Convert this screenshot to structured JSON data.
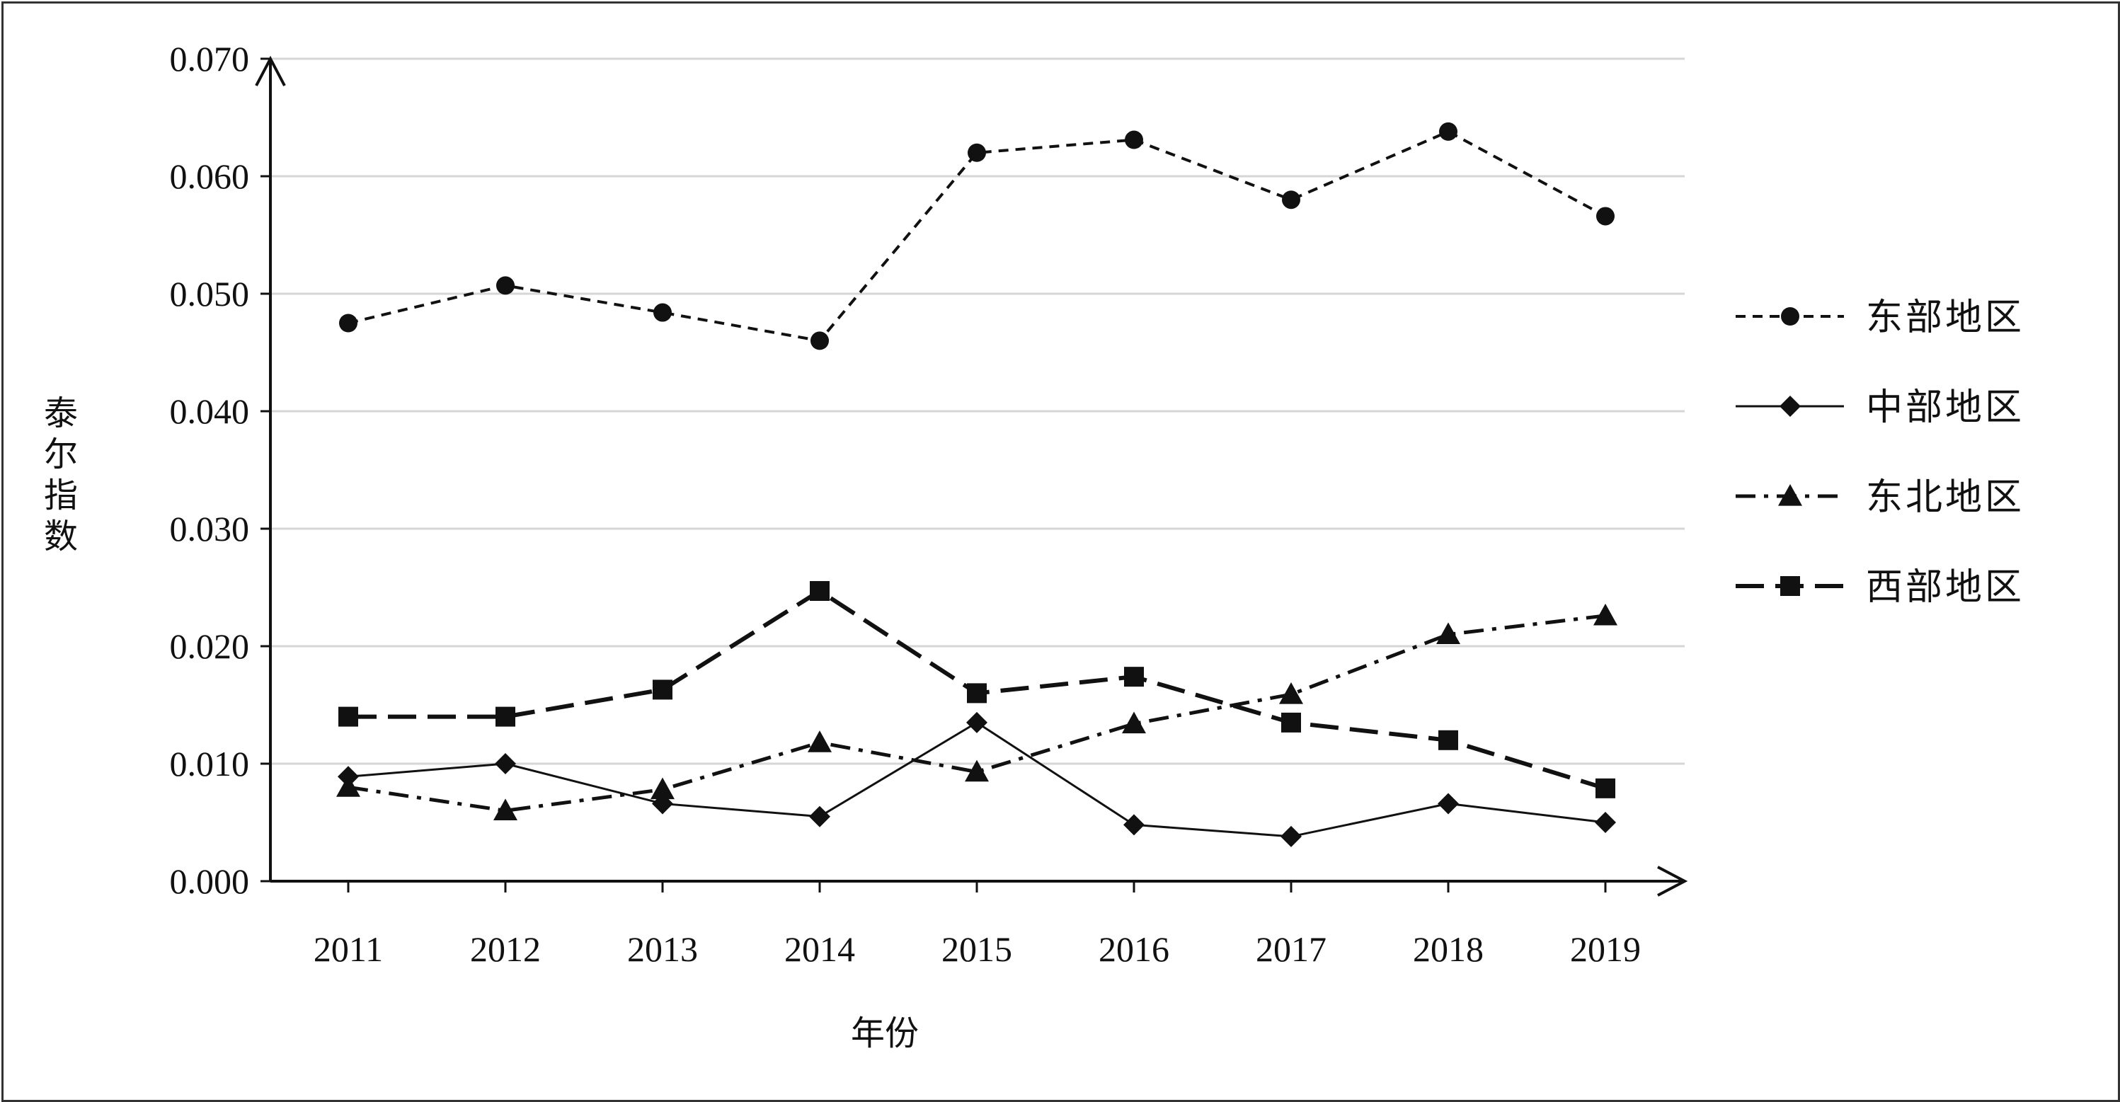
{
  "chart_data": {
    "type": "line",
    "title": "",
    "xlabel": "年份",
    "ylabel": "泰尔指数",
    "categories": [
      "2011",
      "2012",
      "2013",
      "2014",
      "2015",
      "2016",
      "2017",
      "2018",
      "2019"
    ],
    "ylim": [
      0.0,
      0.07
    ],
    "yticks": [
      "0.000",
      "0.010",
      "0.020",
      "0.030",
      "0.040",
      "0.050",
      "0.060",
      "0.070"
    ],
    "grid": true,
    "legend_position": "right",
    "series": [
      {
        "name": "东部地区",
        "marker": "circle",
        "line_style": "dashed-short",
        "values": [
          0.0475,
          0.0507,
          0.0484,
          0.046,
          0.062,
          0.0631,
          0.058,
          0.0638,
          0.0566
        ]
      },
      {
        "name": "中部地区",
        "marker": "diamond",
        "line_style": "solid",
        "values": [
          0.0089,
          0.01,
          0.0066,
          0.0055,
          0.0135,
          0.0048,
          0.0038,
          0.0066,
          0.005
        ]
      },
      {
        "name": "东北地区",
        "marker": "triangle",
        "line_style": "dash-dot",
        "values": [
          0.008,
          0.006,
          0.0078,
          0.0118,
          0.0093,
          0.0134,
          0.0159,
          0.021,
          0.0226
        ]
      },
      {
        "name": "西部地区",
        "marker": "square",
        "line_style": "dashed-long",
        "values": [
          0.014,
          0.014,
          0.0163,
          0.0247,
          0.016,
          0.0174,
          0.0135,
          0.012,
          0.0079
        ]
      }
    ]
  }
}
